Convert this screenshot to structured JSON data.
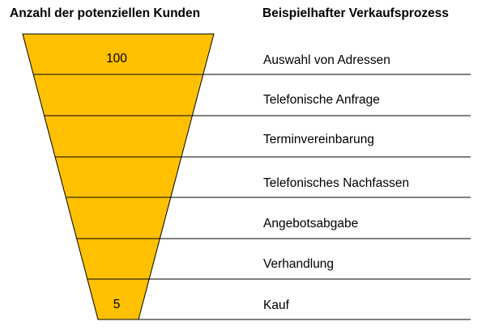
{
  "headers": {
    "left": "Anzahl der potenziellen Kunden",
    "right": "Beispielhafter Verkaufsprozess"
  },
  "funnel": {
    "top_value": "100",
    "bottom_value": "5",
    "fill_color": "#FFC000",
    "stroke_color": "#000000"
  },
  "stages": [
    "Auswahl von Adressen",
    "Telefonische Anfrage",
    "Terminvereinbarung",
    "Telefonisches Nachfassen",
    "Angebotsabgabe",
    "Verhandlung",
    "Kauf"
  ]
}
